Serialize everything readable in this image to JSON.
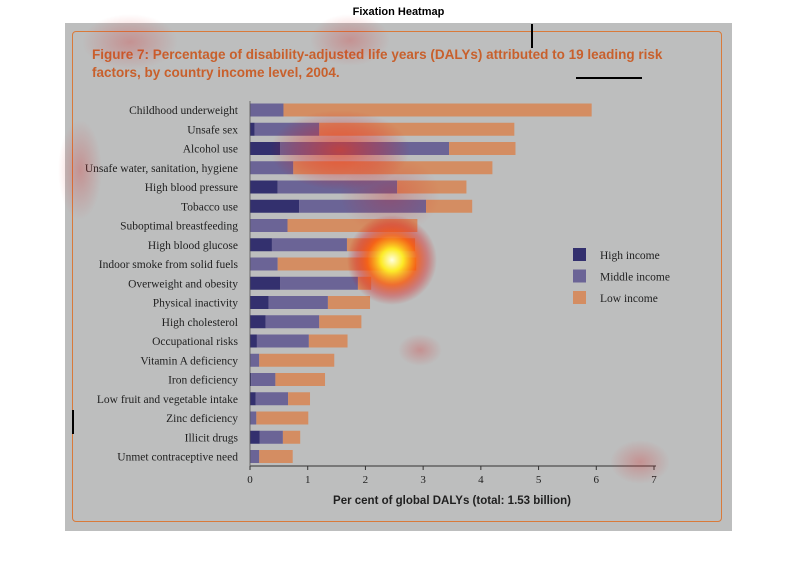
{
  "page_title": "Fixation Heatmap",
  "chart_data": {
    "type": "bar",
    "orientation": "horizontal",
    "stacked": true,
    "title": "Figure 7: Percentage of disability-adjusted life years (DALYs) attributed to 19 leading risk factors, by country income level, 2004.",
    "xlabel": "Per cent of global DALYs (total: 1.53 billion)",
    "xlim": [
      0,
      7
    ],
    "xticks": [
      "0",
      "1",
      "2",
      "3",
      "4",
      "5",
      "6",
      "7"
    ],
    "categories": [
      "Childhood underweight",
      "Unsafe sex",
      "Alcohol use",
      "Unsafe water, sanitation, hygiene",
      "High blood pressure",
      "Tobacco use",
      "Suboptimal breastfeeding",
      "High blood glucose",
      "Indoor smoke from solid fuels",
      "Overweight and obesity",
      "Physical inactivity",
      "High cholesterol",
      "Occupational risks",
      "Vitamin A deficiency",
      "Iron deficiency",
      "Low fruit and vegetable intake",
      "Zinc deficiency",
      "Illicit drugs",
      "Unmet contraceptive need"
    ],
    "series": [
      {
        "name": "High income",
        "color": "#33306e",
        "values": [
          0.0,
          0.08,
          0.52,
          0.0,
          0.48,
          0.85,
          0.0,
          0.38,
          0.0,
          0.52,
          0.32,
          0.27,
          0.12,
          0.0,
          0.02,
          0.1,
          0.0,
          0.17,
          0.0
        ]
      },
      {
        "name": "Middle income",
        "color": "#6b6496",
        "values": [
          0.58,
          1.12,
          2.93,
          0.75,
          2.07,
          2.2,
          0.65,
          1.3,
          0.48,
          1.35,
          1.03,
          0.93,
          0.9,
          0.16,
          0.42,
          0.56,
          0.11,
          0.4,
          0.16
        ]
      },
      {
        "name": "Low income",
        "color": "#d48d62",
        "values": [
          5.34,
          3.38,
          1.15,
          3.45,
          1.2,
          0.8,
          2.25,
          1.18,
          2.4,
          0.23,
          0.73,
          0.73,
          0.67,
          1.3,
          0.86,
          0.38,
          0.9,
          0.3,
          0.58
        ]
      }
    ],
    "legend_position": "right",
    "grid": false
  },
  "heatmap": {
    "type": "fixation-density-overlay",
    "hotspot_color": "#ffee22"
  }
}
